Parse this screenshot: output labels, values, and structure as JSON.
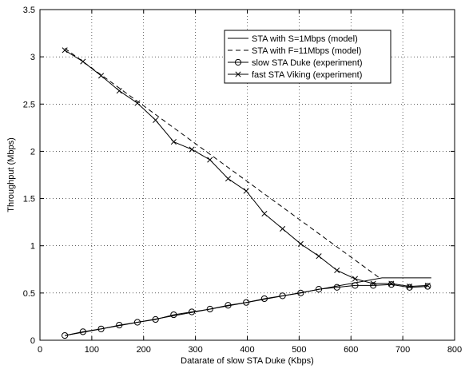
{
  "chart_data": {
    "type": "line",
    "title": "",
    "xlabel": "Datarate of slow STA Duke (Kbps)",
    "ylabel": "Throughput (Mbps)",
    "xlim": [
      0,
      800
    ],
    "ylim": [
      0,
      3.5
    ],
    "xticks": [
      "0",
      "100",
      "200",
      "300",
      "400",
      "500",
      "600",
      "700",
      "800"
    ],
    "yticks": [
      "0",
      "0.5",
      "1",
      "1.5",
      "2",
      "2.5",
      "3",
      "3.5"
    ],
    "grid": true,
    "legend_position": "top-right",
    "series": [
      {
        "name": "STA with S=1Mbps (model)",
        "style": "solid",
        "marker": "none",
        "x": [
          48,
          660,
          755
        ],
        "y": [
          0.05,
          0.66,
          0.66
        ]
      },
      {
        "name": "STA with F=11Mbps (model)",
        "style": "dashed",
        "marker": "none",
        "x": [
          48,
          655
        ],
        "y": [
          3.09,
          0.66
        ]
      },
      {
        "name": "slow STA Duke (experiment)",
        "style": "solid",
        "marker": "circle",
        "x": [
          48,
          83,
          118,
          153,
          188,
          223,
          258,
          293,
          328,
          363,
          398,
          433,
          468,
          503,
          538,
          573,
          608,
          643,
          678,
          713,
          748
        ],
        "y": [
          0.05,
          0.09,
          0.12,
          0.16,
          0.19,
          0.22,
          0.27,
          0.3,
          0.33,
          0.37,
          0.4,
          0.44,
          0.47,
          0.5,
          0.54,
          0.56,
          0.58,
          0.58,
          0.59,
          0.56,
          0.57
        ]
      },
      {
        "name": "fast STA Viking (experiment)",
        "style": "solid",
        "marker": "x",
        "x": [
          48,
          83,
          118,
          153,
          188,
          223,
          258,
          293,
          328,
          363,
          398,
          433,
          468,
          503,
          538,
          573,
          608,
          643,
          678,
          713,
          748
        ],
        "y": [
          3.07,
          2.95,
          2.8,
          2.64,
          2.51,
          2.33,
          2.1,
          2.02,
          1.91,
          1.71,
          1.58,
          1.34,
          1.18,
          1.02,
          0.89,
          0.74,
          0.65,
          0.6,
          0.6,
          0.57,
          0.58
        ]
      }
    ]
  }
}
